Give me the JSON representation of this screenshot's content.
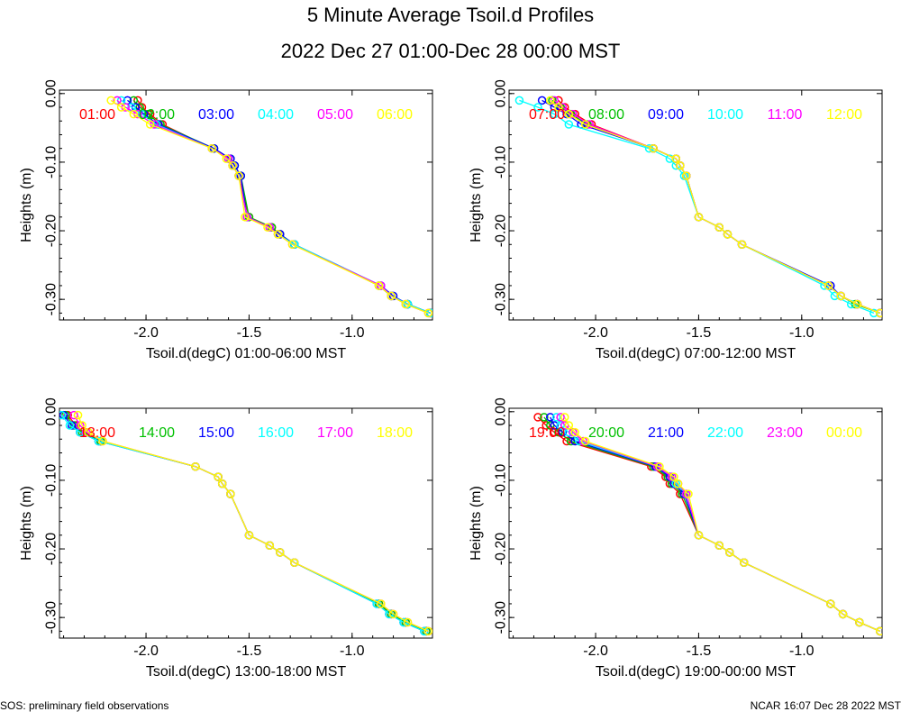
{
  "title": "5 Minute Average Tsoil.d Profiles",
  "subtitle": "2022 Dec 27 01:00-Dec 28 00:00 MST",
  "footer_left": "SOS: preliminary field observations",
  "footer_right": "NCAR 16:07 Dec 28 2022 MST",
  "colors": [
    "#ff0000",
    "#00c000",
    "#0000ff",
    "#00ffff",
    "#ff00ff",
    "#ffff00"
  ],
  "chart_data": [
    {
      "type": "line",
      "xlabel": "Tsoil.d(degC) 01:00-06:00 MST",
      "ylabel": "Heights (m)",
      "xlim": [
        -2.42,
        -0.61
      ],
      "ylim": [
        -0.33,
        0.005
      ],
      "xticks": [
        "-2.0",
        "-1.5",
        "-1.0"
      ],
      "xtick_values": [
        -2.0,
        -1.5,
        -1.0
      ],
      "yticks": [
        "0.00",
        "-0.10",
        "-0.20",
        "-0.30"
      ],
      "ytick_values": [
        0.0,
        -0.1,
        -0.2,
        -0.3
      ],
      "series": [
        {
          "name": "01:00",
          "x": [
            -2.04,
            -2.02,
            -1.98,
            -1.92,
            -1.68,
            -1.6,
            -1.58,
            -1.55,
            -1.5,
            -1.39,
            -1.35,
            -1.28,
            -0.87,
            -0.81,
            -0.73,
            -0.62
          ],
          "y": [
            -0.01,
            -0.02,
            -0.03,
            -0.045,
            -0.08,
            -0.095,
            -0.105,
            -0.12,
            -0.18,
            -0.195,
            -0.205,
            -0.22,
            -0.28,
            -0.295,
            -0.307,
            -0.32
          ]
        },
        {
          "name": "02:00",
          "x": [
            -2.06,
            -2.03,
            -1.99,
            -1.93,
            -1.67,
            -1.59,
            -1.57,
            -1.54,
            -1.5,
            -1.39,
            -1.35,
            -1.28,
            -0.87,
            -0.81,
            -0.73,
            -0.62
          ],
          "y": [
            -0.01,
            -0.02,
            -0.03,
            -0.045,
            -0.08,
            -0.095,
            -0.105,
            -0.12,
            -0.18,
            -0.195,
            -0.205,
            -0.22,
            -0.28,
            -0.295,
            -0.307,
            -0.32
          ]
        },
        {
          "name": "03:00",
          "x": [
            -2.09,
            -2.05,
            -2.01,
            -1.94,
            -1.67,
            -1.59,
            -1.57,
            -1.54,
            -1.51,
            -1.4,
            -1.35,
            -1.28,
            -0.86,
            -0.8,
            -0.73,
            -0.62
          ],
          "y": [
            -0.01,
            -0.02,
            -0.03,
            -0.045,
            -0.08,
            -0.095,
            -0.105,
            -0.12,
            -0.18,
            -0.195,
            -0.205,
            -0.22,
            -0.28,
            -0.295,
            -0.307,
            -0.32
          ]
        },
        {
          "name": "04:00",
          "x": [
            -2.12,
            -2.07,
            -2.02,
            -1.95,
            -1.68,
            -1.6,
            -1.58,
            -1.55,
            -1.51,
            -1.4,
            -1.36,
            -1.28,
            -0.86,
            -0.81,
            -0.73,
            -0.62
          ],
          "y": [
            -0.01,
            -0.02,
            -0.03,
            -0.045,
            -0.08,
            -0.095,
            -0.105,
            -0.12,
            -0.18,
            -0.195,
            -0.205,
            -0.22,
            -0.28,
            -0.295,
            -0.307,
            -0.32
          ]
        },
        {
          "name": "05:00",
          "x": [
            -2.14,
            -2.1,
            -2.04,
            -1.96,
            -1.68,
            -1.6,
            -1.58,
            -1.55,
            -1.51,
            -1.4,
            -1.36,
            -1.29,
            -0.86,
            -0.81,
            -0.74,
            -0.63
          ],
          "y": [
            -0.01,
            -0.02,
            -0.03,
            -0.045,
            -0.08,
            -0.095,
            -0.105,
            -0.12,
            -0.18,
            -0.195,
            -0.205,
            -0.22,
            -0.28,
            -0.295,
            -0.307,
            -0.32
          ]
        },
        {
          "name": "06:00",
          "x": [
            -2.17,
            -2.12,
            -2.06,
            -1.98,
            -1.68,
            -1.61,
            -1.58,
            -1.55,
            -1.52,
            -1.41,
            -1.36,
            -1.29,
            -0.87,
            -0.81,
            -0.74,
            -0.63
          ],
          "y": [
            -0.01,
            -0.02,
            -0.03,
            -0.045,
            -0.08,
            -0.095,
            -0.105,
            -0.12,
            -0.18,
            -0.195,
            -0.205,
            -0.22,
            -0.28,
            -0.295,
            -0.307,
            -0.32
          ]
        }
      ]
    },
    {
      "type": "line",
      "xlabel": "Tsoil.d(degC) 07:00-12:00 MST",
      "ylabel": "Heights (m)",
      "xlim": [
        -2.42,
        -0.61
      ],
      "ylim": [
        -0.33,
        0.005
      ],
      "xticks": [
        "-2.0",
        "-1.5",
        "-1.0"
      ],
      "xtick_values": [
        -2.0,
        -1.5,
        -1.0
      ],
      "yticks": [
        "0.00",
        "-0.10",
        "-0.20",
        "-0.30"
      ],
      "ytick_values": [
        0.0,
        -0.1,
        -0.2,
        -0.3
      ],
      "series": [
        {
          "name": "07:00",
          "x": [
            -2.18,
            -2.15,
            -2.1,
            -2.02,
            -1.72,
            -1.61,
            -1.59,
            -1.56,
            -1.5,
            -1.4,
            -1.36,
            -1.29,
            -0.87,
            -0.81,
            -0.73,
            -0.62
          ],
          "y": [
            -0.01,
            -0.02,
            -0.03,
            -0.045,
            -0.08,
            -0.095,
            -0.105,
            -0.12,
            -0.18,
            -0.195,
            -0.205,
            -0.22,
            -0.28,
            -0.295,
            -0.307,
            -0.32
          ]
        },
        {
          "name": "08:00",
          "x": [
            -2.21,
            -2.17,
            -2.12,
            -2.04,
            -1.72,
            -1.61,
            -1.59,
            -1.56,
            -1.5,
            -1.4,
            -1.36,
            -1.29,
            -0.87,
            -0.81,
            -0.74,
            -0.62
          ],
          "y": [
            -0.01,
            -0.02,
            -0.03,
            -0.045,
            -0.08,
            -0.095,
            -0.105,
            -0.12,
            -0.18,
            -0.195,
            -0.205,
            -0.22,
            -0.28,
            -0.295,
            -0.307,
            -0.32
          ]
        },
        {
          "name": "09:00",
          "x": [
            -2.26,
            -2.2,
            -2.14,
            -2.07,
            -1.72,
            -1.61,
            -1.59,
            -1.56,
            -1.5,
            -1.4,
            -1.36,
            -1.29,
            -0.86,
            -0.81,
            -0.73,
            -0.62
          ],
          "y": [
            -0.01,
            -0.02,
            -0.03,
            -0.045,
            -0.08,
            -0.095,
            -0.105,
            -0.12,
            -0.18,
            -0.195,
            -0.205,
            -0.22,
            -0.28,
            -0.295,
            -0.307,
            -0.32
          ]
        },
        {
          "name": "10:00",
          "x": [
            -2.37,
            -2.28,
            -2.2,
            -2.13,
            -1.74,
            -1.64,
            -1.61,
            -1.57,
            -1.5,
            -1.4,
            -1.36,
            -1.29,
            -0.89,
            -0.84,
            -0.76,
            -0.65
          ],
          "y": [
            -0.01,
            -0.02,
            -0.03,
            -0.045,
            -0.08,
            -0.095,
            -0.105,
            -0.12,
            -0.18,
            -0.195,
            -0.205,
            -0.22,
            -0.28,
            -0.295,
            -0.307,
            -0.32
          ]
        },
        {
          "name": "11:00",
          "x": [
            -2.2,
            -2.16,
            -2.11,
            -2.03,
            -1.72,
            -1.61,
            -1.59,
            -1.56,
            -1.5,
            -1.4,
            -1.36,
            -1.29,
            -0.87,
            -0.81,
            -0.73,
            -0.62
          ],
          "y": [
            -0.01,
            -0.02,
            -0.03,
            -0.045,
            -0.08,
            -0.095,
            -0.105,
            -0.12,
            -0.18,
            -0.195,
            -0.205,
            -0.22,
            -0.28,
            -0.295,
            -0.307,
            -0.32
          ]
        },
        {
          "name": "12:00",
          "x": [
            -2.22,
            -2.18,
            -2.13,
            -2.05,
            -1.72,
            -1.61,
            -1.59,
            -1.56,
            -1.5,
            -1.4,
            -1.36,
            -1.29,
            -0.87,
            -0.81,
            -0.73,
            -0.62
          ],
          "y": [
            -0.01,
            -0.02,
            -0.03,
            -0.045,
            -0.08,
            -0.095,
            -0.105,
            -0.12,
            -0.18,
            -0.195,
            -0.205,
            -0.22,
            -0.28,
            -0.295,
            -0.307,
            -0.32
          ]
        }
      ]
    },
    {
      "type": "line",
      "xlabel": "Tsoil.d(degC) 13:00-18:00 MST",
      "ylabel": "Heights (m)",
      "xlim": [
        -2.42,
        -0.61
      ],
      "ylim": [
        -0.33,
        0.005
      ],
      "xticks": [
        "-2.0",
        "-1.5",
        "-1.0"
      ],
      "xtick_values": [
        -2.0,
        -1.5,
        -1.0
      ],
      "yticks": [
        "0.00",
        "-0.10",
        "-0.20",
        "-0.30"
      ],
      "ytick_values": [
        0.0,
        -0.1,
        -0.2,
        -0.3
      ],
      "series": [
        {
          "name": "13:00",
          "x": [
            -2.38,
            -2.34,
            -2.3,
            -2.22,
            -1.76,
            -1.65,
            -1.63,
            -1.59,
            -1.5,
            -1.4,
            -1.35,
            -1.28,
            -0.87,
            -0.81,
            -0.74,
            -0.64
          ],
          "y": [
            -0.005,
            -0.02,
            -0.03,
            -0.043,
            -0.08,
            -0.095,
            -0.105,
            -0.12,
            -0.18,
            -0.195,
            -0.205,
            -0.22,
            -0.28,
            -0.295,
            -0.307,
            -0.32
          ]
        },
        {
          "name": "14:00",
          "x": [
            -2.39,
            -2.35,
            -2.31,
            -2.22,
            -1.76,
            -1.65,
            -1.63,
            -1.59,
            -1.5,
            -1.4,
            -1.35,
            -1.28,
            -0.87,
            -0.81,
            -0.74,
            -0.64
          ],
          "y": [
            -0.005,
            -0.02,
            -0.03,
            -0.043,
            -0.08,
            -0.095,
            -0.105,
            -0.12,
            -0.18,
            -0.195,
            -0.205,
            -0.22,
            -0.28,
            -0.295,
            -0.307,
            -0.32
          ]
        },
        {
          "name": "15:00",
          "x": [
            -2.4,
            -2.36,
            -2.32,
            -2.23,
            -1.76,
            -1.65,
            -1.63,
            -1.59,
            -1.5,
            -1.4,
            -1.35,
            -1.28,
            -0.88,
            -0.82,
            -0.75,
            -0.65
          ],
          "y": [
            -0.005,
            -0.02,
            -0.03,
            -0.043,
            -0.08,
            -0.095,
            -0.105,
            -0.12,
            -0.18,
            -0.195,
            -0.205,
            -0.22,
            -0.28,
            -0.295,
            -0.307,
            -0.32
          ]
        },
        {
          "name": "16:00",
          "x": [
            -2.41,
            -2.37,
            -2.32,
            -2.23,
            -1.76,
            -1.65,
            -1.63,
            -1.59,
            -1.5,
            -1.4,
            -1.35,
            -1.28,
            -0.88,
            -0.82,
            -0.75,
            -0.65
          ],
          "y": [
            -0.005,
            -0.02,
            -0.03,
            -0.043,
            -0.08,
            -0.095,
            -0.105,
            -0.12,
            -0.18,
            -0.195,
            -0.205,
            -0.22,
            -0.28,
            -0.295,
            -0.307,
            -0.32
          ]
        },
        {
          "name": "17:00",
          "x": [
            -2.35,
            -2.32,
            -2.29,
            -2.21,
            -1.76,
            -1.65,
            -1.63,
            -1.59,
            -1.5,
            -1.4,
            -1.35,
            -1.28,
            -0.86,
            -0.8,
            -0.73,
            -0.63
          ],
          "y": [
            -0.005,
            -0.02,
            -0.03,
            -0.043,
            -0.08,
            -0.095,
            -0.105,
            -0.12,
            -0.18,
            -0.195,
            -0.205,
            -0.22,
            -0.28,
            -0.295,
            -0.307,
            -0.32
          ]
        },
        {
          "name": "18:00",
          "x": [
            -2.33,
            -2.31,
            -2.28,
            -2.21,
            -1.76,
            -1.65,
            -1.63,
            -1.59,
            -1.5,
            -1.4,
            -1.35,
            -1.28,
            -0.86,
            -0.8,
            -0.73,
            -0.63
          ],
          "y": [
            -0.005,
            -0.02,
            -0.03,
            -0.043,
            -0.08,
            -0.095,
            -0.105,
            -0.12,
            -0.18,
            -0.195,
            -0.205,
            -0.22,
            -0.28,
            -0.295,
            -0.307,
            -0.32
          ]
        }
      ]
    },
    {
      "type": "line",
      "xlabel": "Tsoil.d(degC) 19:00-00:00 MST",
      "ylabel": "Heights (m)",
      "xlim": [
        -2.42,
        -0.61
      ],
      "ylim": [
        -0.33,
        0.005
      ],
      "xticks": [
        "-2.0",
        "-1.5",
        "-1.0"
      ],
      "xtick_values": [
        -2.0,
        -1.5,
        -1.0
      ],
      "yticks": [
        "0.00",
        "-0.10",
        "-0.20",
        "-0.30"
      ],
      "ytick_values": [
        0.0,
        -0.1,
        -0.2,
        -0.3
      ],
      "series": [
        {
          "name": "19:00",
          "x": [
            -2.28,
            -2.24,
            -2.2,
            -2.14,
            -1.73,
            -1.66,
            -1.64,
            -1.59,
            -1.5,
            -1.4,
            -1.35,
            -1.28,
            -0.86,
            -0.8,
            -0.72,
            -0.62
          ],
          "y": [
            -0.008,
            -0.02,
            -0.03,
            -0.043,
            -0.08,
            -0.095,
            -0.105,
            -0.12,
            -0.18,
            -0.195,
            -0.205,
            -0.22,
            -0.28,
            -0.295,
            -0.307,
            -0.32
          ]
        },
        {
          "name": "20:00",
          "x": [
            -2.25,
            -2.22,
            -2.18,
            -2.12,
            -1.72,
            -1.65,
            -1.63,
            -1.58,
            -1.5,
            -1.4,
            -1.35,
            -1.28,
            -0.86,
            -0.8,
            -0.72,
            -0.62
          ],
          "y": [
            -0.008,
            -0.02,
            -0.03,
            -0.043,
            -0.08,
            -0.095,
            -0.105,
            -0.12,
            -0.18,
            -0.195,
            -0.205,
            -0.22,
            -0.28,
            -0.295,
            -0.307,
            -0.32
          ]
        },
        {
          "name": "21:00",
          "x": [
            -2.22,
            -2.2,
            -2.16,
            -2.1,
            -1.71,
            -1.64,
            -1.62,
            -1.57,
            -1.5,
            -1.4,
            -1.35,
            -1.28,
            -0.86,
            -0.8,
            -0.72,
            -0.62
          ],
          "y": [
            -0.008,
            -0.02,
            -0.03,
            -0.043,
            -0.08,
            -0.095,
            -0.105,
            -0.12,
            -0.18,
            -0.195,
            -0.205,
            -0.22,
            -0.28,
            -0.295,
            -0.307,
            -0.32
          ]
        },
        {
          "name": "22:00",
          "x": [
            -2.19,
            -2.17,
            -2.13,
            -2.08,
            -1.7,
            -1.63,
            -1.61,
            -1.56,
            -1.5,
            -1.4,
            -1.35,
            -1.28,
            -0.86,
            -0.8,
            -0.72,
            -0.62
          ],
          "y": [
            -0.008,
            -0.02,
            -0.03,
            -0.043,
            -0.08,
            -0.095,
            -0.105,
            -0.12,
            -0.18,
            -0.195,
            -0.205,
            -0.22,
            -0.28,
            -0.295,
            -0.307,
            -0.32
          ]
        },
        {
          "name": "23:00",
          "x": [
            -2.17,
            -2.15,
            -2.11,
            -2.06,
            -1.7,
            -1.63,
            -1.6,
            -1.56,
            -1.5,
            -1.4,
            -1.35,
            -1.28,
            -0.86,
            -0.8,
            -0.72,
            -0.62
          ],
          "y": [
            -0.008,
            -0.02,
            -0.03,
            -0.043,
            -0.08,
            -0.095,
            -0.105,
            -0.12,
            -0.18,
            -0.195,
            -0.205,
            -0.22,
            -0.28,
            -0.295,
            -0.307,
            -0.32
          ]
        },
        {
          "name": "00:00",
          "x": [
            -2.15,
            -2.13,
            -2.1,
            -2.05,
            -1.69,
            -1.62,
            -1.6,
            -1.55,
            -1.5,
            -1.4,
            -1.35,
            -1.28,
            -0.86,
            -0.8,
            -0.72,
            -0.62
          ],
          "y": [
            -0.008,
            -0.02,
            -0.03,
            -0.043,
            -0.08,
            -0.095,
            -0.105,
            -0.12,
            -0.18,
            -0.195,
            -0.205,
            -0.22,
            -0.28,
            -0.295,
            -0.307,
            -0.32
          ]
        }
      ]
    }
  ]
}
